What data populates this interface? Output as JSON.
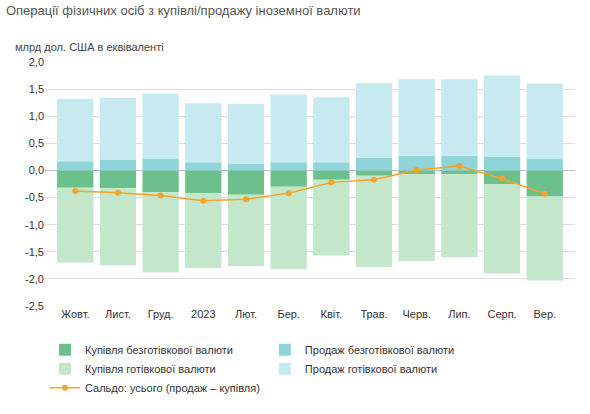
{
  "chart_data": {
    "type": "bar",
    "title": "Операції фізичних осіб з купівлі/продажу іноземної валюти",
    "y_label": "млрд дол. США в еквіваленті",
    "stacked": true,
    "grid": true,
    "legend": "bottom",
    "categories": [
      "Жовт.",
      "Лист.",
      "Груд.",
      "2023",
      "Лют.",
      "Бер.",
      "Квіт.",
      "Трав.",
      "Черв.",
      "Лип.",
      "Серп.",
      "Вер."
    ],
    "ylim": [
      -2.5,
      2.0
    ],
    "yticks": [
      {
        "value": -2.5,
        "label": "-2,5"
      },
      {
        "value": -2.0,
        "label": "-2,0"
      },
      {
        "value": -1.5,
        "label": "-1,5"
      },
      {
        "value": -1.0,
        "label": "-1,0"
      },
      {
        "value": -0.5,
        "label": "-0,5"
      },
      {
        "value": 0,
        "label": "0,0"
      },
      {
        "value": 0.5,
        "label": "0,5"
      },
      {
        "value": 1.0,
        "label": "1,0"
      },
      {
        "value": 1.5,
        "label": "1,5"
      },
      {
        "value": 2.0,
        "label": "2,0"
      }
    ],
    "series": [
      {
        "name": "Купівля безготівкової валюти",
        "type": "bar",
        "color": "#6cc08b",
        "values": [
          -0.32,
          -0.33,
          -0.4,
          -0.42,
          -0.45,
          -0.3,
          -0.17,
          -0.1,
          -0.07,
          -0.07,
          -0.25,
          -0.48
        ]
      },
      {
        "name": "Продаж безготівкової валюти",
        "type": "bar",
        "color": "#8fd4d8",
        "values": [
          0.17,
          0.2,
          0.22,
          0.15,
          0.13,
          0.15,
          0.15,
          0.23,
          0.27,
          0.27,
          0.25,
          0.22
        ]
      },
      {
        "name": "Купівля готівкової валюти",
        "type": "bar",
        "color": "#c4e7cb",
        "values": [
          -1.38,
          -1.42,
          -1.48,
          -1.38,
          -1.31,
          -1.52,
          -1.4,
          -1.68,
          -1.6,
          -1.53,
          -1.65,
          -1.55
        ]
      },
      {
        "name": "Продаж готівкової валюти",
        "type": "bar",
        "color": "#c6eaf0",
        "values": [
          1.15,
          1.14,
          1.2,
          1.09,
          1.1,
          1.25,
          1.2,
          1.38,
          1.41,
          1.41,
          1.5,
          1.38
        ]
      },
      {
        "name": "Сальдо: усього (продаж – купівля)",
        "type": "line",
        "color": "#f5a42a",
        "marker": "circle",
        "values": [
          -0.38,
          -0.41,
          -0.46,
          -0.56,
          -0.53,
          -0.42,
          -0.22,
          -0.17,
          0.01,
          0.08,
          -0.15,
          -0.43
        ]
      }
    ]
  }
}
